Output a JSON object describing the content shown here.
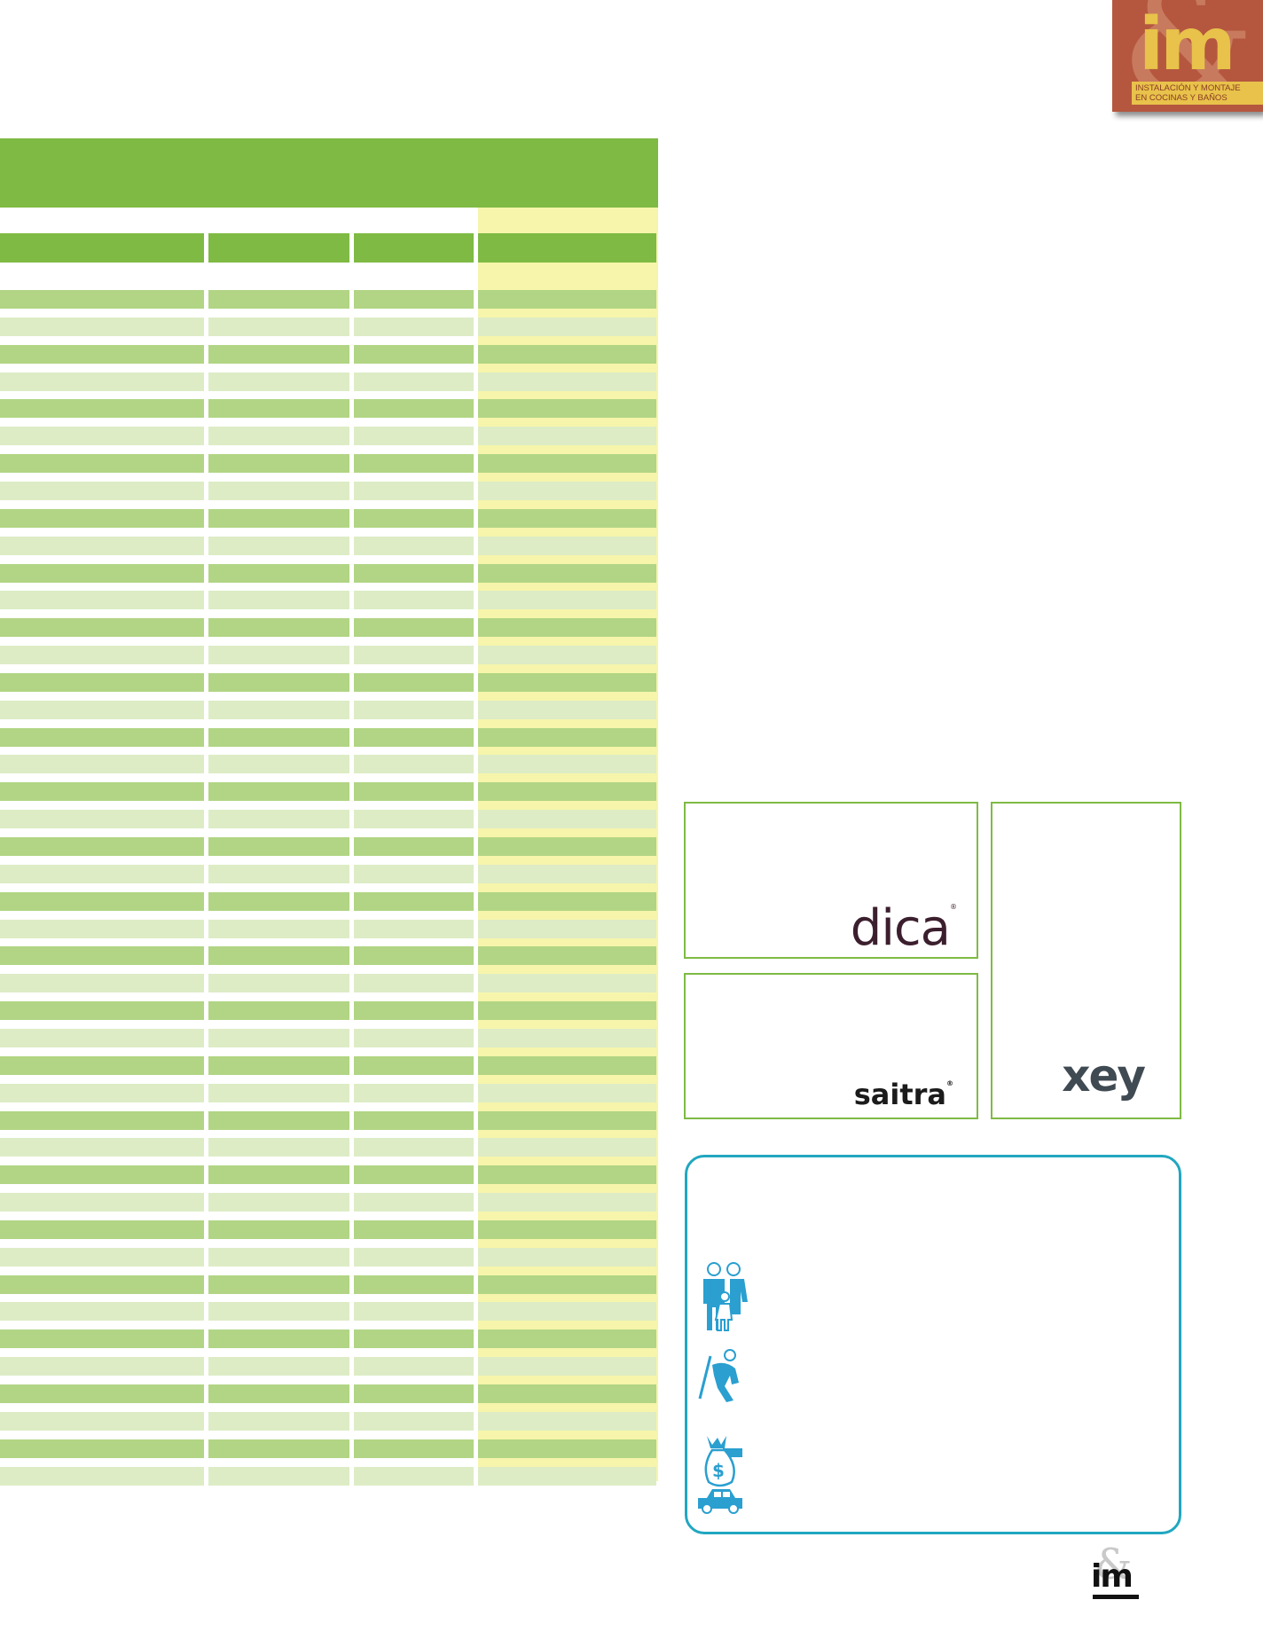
{
  "header_logo": {
    "mark": "im",
    "tagline": "INSTALACIÓN Y MONTAJE\nEN COCINAS Y BAÑOS"
  },
  "table": {
    "row_count": 44
  },
  "brands": {
    "dica": "dica",
    "saitra": "saitra",
    "xey": "xey"
  },
  "registered_mark": "®",
  "icons": [
    "family-icon",
    "worker-icon",
    "money-bag-icon",
    "car-icon"
  ],
  "footer_logo": {
    "mark": "im"
  },
  "colors": {
    "header_green": "#7fba44",
    "row_dark": "#b1d584",
    "row_light": "#ddecc5",
    "highlight_column": "#f6f5ab",
    "box_border_green": "#7fba44",
    "info_border_blue": "#21a7c0",
    "icon_blue": "#2a9fd0",
    "logo_background": "#b5573f",
    "logo_gold": "#e8c24a"
  }
}
